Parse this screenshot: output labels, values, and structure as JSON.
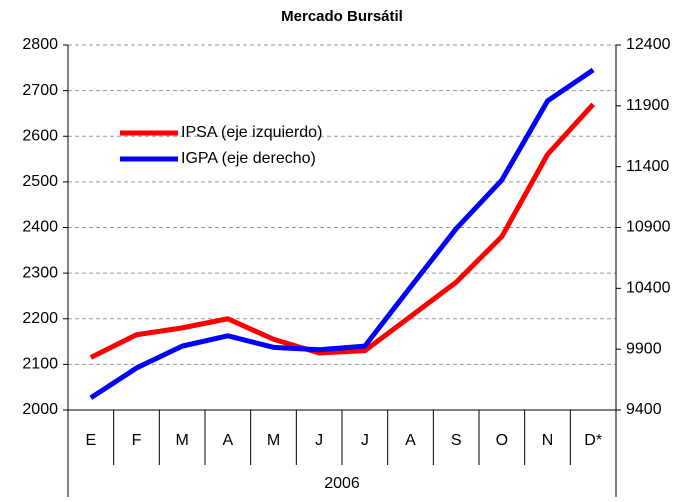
{
  "chart_data": {
    "type": "line",
    "title": "Mercado Bursátil",
    "categories": [
      "E",
      "F",
      "M",
      "A",
      "M",
      "J",
      "J",
      "A",
      "S",
      "O",
      "N",
      "D*"
    ],
    "group_label": "2006",
    "series": [
      {
        "name": "IPSA (eje izquierdo)",
        "color": "#ff0000",
        "values": [
          2115,
          2165,
          2180,
          2200,
          2155,
          2125,
          2130,
          2205,
          2280,
          2380,
          2560,
          2670
        ]
      },
      {
        "name": "IGPA (eje derecho)",
        "color": "#0000ff",
        "axis": "y2",
        "values": [
          9500,
          9745,
          9925,
          10010,
          9915,
          9895,
          9925,
          10410,
          10890,
          11290,
          11940,
          12195
        ]
      }
    ],
    "ylim": [
      2000,
      2800
    ],
    "yticks": [
      2000,
      2100,
      2200,
      2300,
      2400,
      2500,
      2600,
      2700,
      2800
    ],
    "y2lim": [
      9400,
      12400
    ],
    "y2ticks": [
      9400,
      9900,
      10400,
      10900,
      11400,
      11900,
      12400
    ],
    "grid": true
  }
}
